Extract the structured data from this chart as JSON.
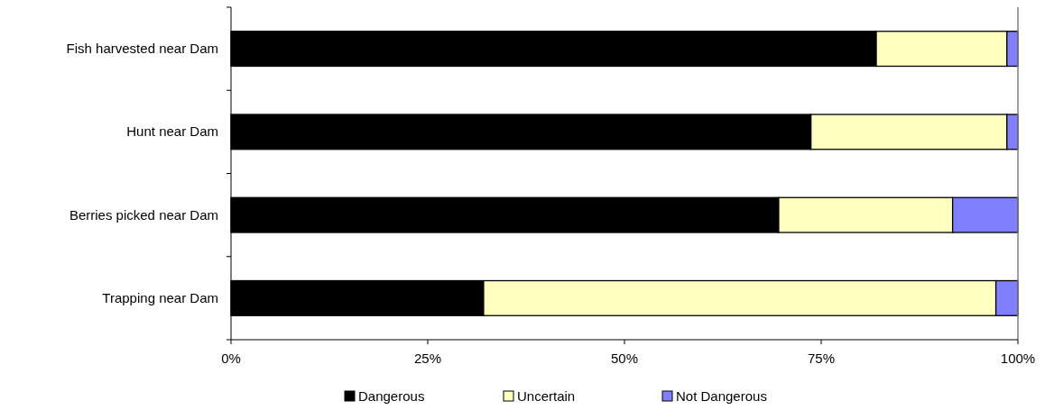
{
  "chart_data": {
    "type": "bar",
    "orientation": "horizontal",
    "stacked": true,
    "categories": [
      "Fish harvested near Dam",
      "Hunt near Dam",
      "Berries picked near Dam",
      "Trapping near Dam"
    ],
    "series": [
      {
        "name": "Dangerous",
        "color": "#000000",
        "values": [
          82.0,
          73.7,
          69.6,
          32.1
        ]
      },
      {
        "name": "Uncertain",
        "color": "#ffffc0",
        "values": [
          16.6,
          24.9,
          22.1,
          65.1
        ]
      },
      {
        "name": "Not Dangerous",
        "color": "#8080ff",
        "values": [
          1.4,
          1.4,
          8.3,
          2.8
        ]
      }
    ],
    "xlim": [
      0,
      100
    ],
    "xticks": [
      {
        "value": 0,
        "label": "0%"
      },
      {
        "value": 25,
        "label": "25%"
      },
      {
        "value": 50,
        "label": "50%"
      },
      {
        "value": 75,
        "label": "75%"
      },
      {
        "value": 100,
        "label": "100%"
      }
    ],
    "grid": false,
    "legend": "bottom"
  }
}
